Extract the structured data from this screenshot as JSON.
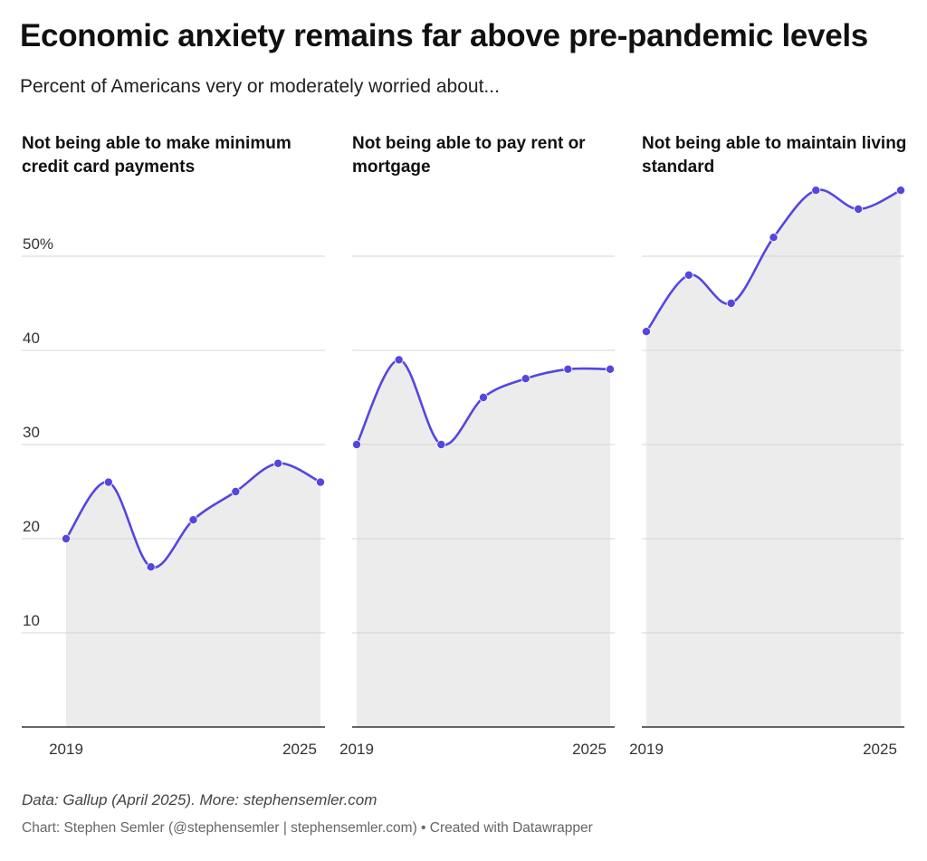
{
  "title": "Economic anxiety remains far above pre-pandemic levels",
  "subtitle": "Percent of Americans very or moderately worried about...",
  "source": "Data: Gallup (April 2025). More: stephensemler.com",
  "credit": "Chart: Stephen Semler (@stephensemler | stephensemler.com) • Created with Datawrapper",
  "colors": {
    "line": "#5546e0",
    "area": "#ececec",
    "grid": "#d5d5d5",
    "baseline": "#333333",
    "tick_text": "#333333"
  },
  "chart_data": [
    {
      "type": "area",
      "title": "Not being able to make minimum credit card payments",
      "x": [
        2019,
        2020,
        2021,
        2022,
        2023,
        2024,
        2025
      ],
      "values": [
        20,
        26,
        17,
        22,
        25,
        28,
        26
      ],
      "x_tick_labels": [
        "2019",
        "2025"
      ],
      "y_ticks": [
        10,
        20,
        30,
        40,
        50
      ],
      "y_tick_labels": [
        "10",
        "20",
        "30",
        "40",
        "50%"
      ],
      "ylim": [
        0,
        57
      ],
      "grid": true,
      "legend": "none"
    },
    {
      "type": "area",
      "title": "Not being able to pay rent or mortgage",
      "x": [
        2019,
        2020,
        2021,
        2022,
        2023,
        2024,
        2025
      ],
      "values": [
        30,
        39,
        30,
        35,
        37,
        38,
        38
      ],
      "x_tick_labels": [
        "2019",
        "2025"
      ],
      "y_ticks": [
        10,
        20,
        30,
        40,
        50
      ],
      "ylim": [
        0,
        57
      ],
      "grid": true,
      "legend": "none"
    },
    {
      "type": "area",
      "title": "Not being able to maintain living standard",
      "x": [
        2019,
        2020,
        2021,
        2022,
        2023,
        2024,
        2025
      ],
      "values": [
        42,
        48,
        45,
        52,
        57,
        55,
        57
      ],
      "x_tick_labels": [
        "2019",
        "2025"
      ],
      "y_ticks": [
        10,
        20,
        30,
        40,
        50
      ],
      "ylim": [
        0,
        57
      ],
      "grid": true,
      "legend": "none"
    }
  ]
}
